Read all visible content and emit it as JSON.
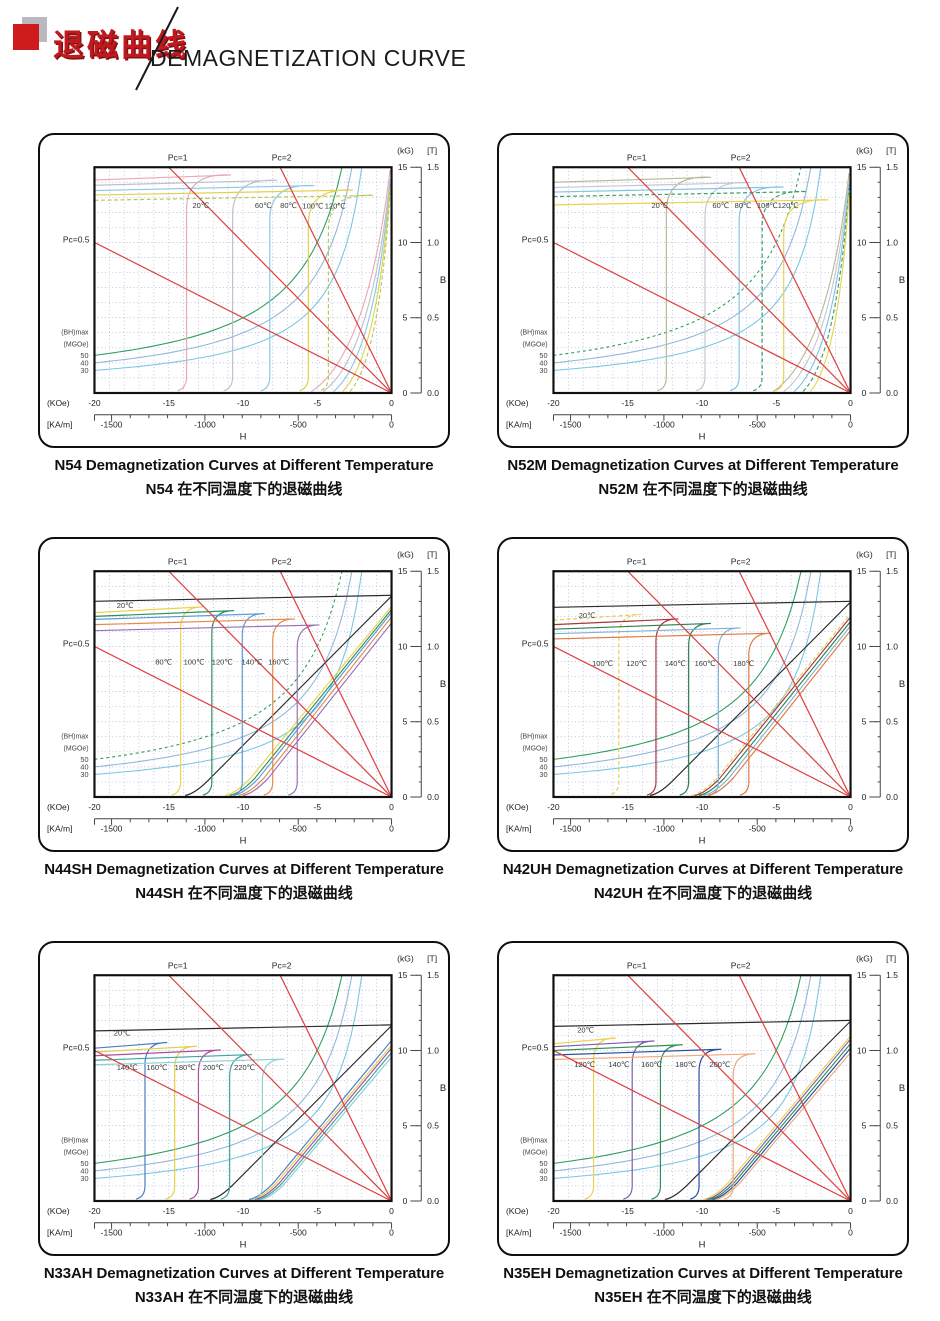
{
  "header": {
    "title_cn": "退磁曲线",
    "title_en": "DEMAGNETIZATION CURVE",
    "accent_color": "#cf1b1b"
  },
  "axes_common": {
    "xlim": [
      -20,
      0
    ],
    "ylim": [
      0,
      15
    ],
    "x_title": "H",
    "y_title": "B",
    "x_primary": {
      "unit": "(KOe)",
      "ticks": [
        -20,
        -15,
        -10,
        -5,
        0
      ]
    },
    "x_secondary": {
      "unit": "[KA/m]",
      "ticks": [
        -1500,
        -1000,
        -500,
        0
      ]
    },
    "y_primary": {
      "unit": "(kG)",
      "ticks": [
        15,
        10,
        5,
        0
      ]
    },
    "y_secondary": {
      "unit": "[T]",
      "ticks": [
        "1.5",
        "1.0",
        "0.5",
        "0.0"
      ]
    },
    "grid": "dotted",
    "pc_color": "#dd4343",
    "pc_lines": [
      {
        "label": "Pc=0.5",
        "slope": 0.5,
        "ly": 10.2
      },
      {
        "label": "Pc=1",
        "slope": 1,
        "lx": -14.4
      },
      {
        "label": "Pc=2",
        "slope": 2,
        "lx": -7.4
      }
    ],
    "bhmax_caption": [
      "(BH)max",
      "(MGOe)"
    ],
    "bh_contours": [
      {
        "label": "50",
        "k": 50,
        "color": "#2f9e5f"
      },
      {
        "label": "40",
        "k": 40,
        "color": "#93b7da"
      },
      {
        "label": "30",
        "k": 30,
        "color": "#79c7e3"
      }
    ]
  },
  "chart_data": [
    {
      "type": "line",
      "grade": "N54",
      "style": "round",
      "contour50_dashed": false,
      "caption_en": "N54 Demagnetization Curves at Different Temperature",
      "caption_cn": "N54 在不同温度下的退磁曲线",
      "xlabel": "H",
      "ylabel": "B",
      "series": [
        {
          "label": "20℃",
          "color": "#eaaab4",
          "Bi": 14.6,
          "Hk": -13.8,
          "Br": 14.8,
          "Hn": -5.4,
          "lx": -13.4,
          "ly": 12.3
        },
        {
          "label": "60℃",
          "color": "#bfbfcd",
          "Bi": 14.25,
          "Hk": -10.7,
          "Br": 14.2,
          "Hn": -4.6,
          "lx": -9.2,
          "ly": 12.3
        },
        {
          "label": "80℃",
          "color": "#85c9e8",
          "Bi": 13.9,
          "Hk": -8.2,
          "Br": 13.9,
          "Hn": -3.9,
          "lx": -7.5,
          "ly": 12.3
        },
        {
          "label": "100℃",
          "color": "#e4cf4b",
          "Bi": 13.6,
          "Hk": -5.6,
          "Br": 13.6,
          "Hn": -3.3,
          "lx": -6.0,
          "ly": 12.25
        },
        {
          "label": "120℃",
          "color": "#b4c953",
          "dash": 1,
          "Bi": 13.25,
          "Hk": -4.25,
          "Br": 13.3,
          "Hn": -2.8,
          "lx": -4.5,
          "ly": 12.25
        }
      ]
    },
    {
      "type": "line",
      "grade": "N52M",
      "style": "round",
      "contour50_dashed": true,
      "caption_en": "N52M Demagnetization Curves at Different Temperature",
      "caption_cn": "N52M 在不同温度下的退磁曲线",
      "xlabel": "H",
      "ylabel": "B",
      "series": [
        {
          "label": "20℃",
          "color": "#b9b896",
          "Bi": 14.45,
          "Hk": -12.4,
          "Br": 14.6,
          "Hn": -5.2,
          "lx": -13.4,
          "ly": 12.3
        },
        {
          "label": "60℃",
          "color": "#c6c6d2",
          "Bi": 14.1,
          "Hk": -9.8,
          "Br": 14.2,
          "Hn": -4.5,
          "lx": -9.3,
          "ly": 12.3
        },
        {
          "label": "80℃",
          "color": "#7fc4e6",
          "Bi": 13.8,
          "Hk": -7.5,
          "Br": 13.9,
          "Hn": -3.8,
          "lx": -7.8,
          "ly": 12.3
        },
        {
          "label": "100℃",
          "color": "#3f9d63",
          "dash": 1,
          "Bi": 13.5,
          "Hk": -5.95,
          "Br": 13.6,
          "Hn": -3.2,
          "lx": -6.3,
          "ly": 12.3
        },
        {
          "label": "120℃",
          "color": "#e8d44d",
          "Bi": 12.95,
          "Hk": -4.5,
          "Br": 13.2,
          "Hn": -2.7,
          "lx": -4.9,
          "ly": 12.3
        }
      ]
    },
    {
      "type": "line",
      "grade": "N44SH",
      "style": "square",
      "contour50_dashed": true,
      "caption_en": "N44SH Demagnetization Curves at Different Temperature",
      "caption_cn": "N44SH 在不同温度下的退磁曲线",
      "xlabel": "H",
      "ylabel": "B",
      "series": [
        {
          "label": "20℃",
          "color": "#2b2b2b",
          "Bi": 13.35,
          "Hk": null,
          "Br": 13.3,
          "Hcb": -13.2,
          "lx": -18.5,
          "ly": 12.55
        },
        {
          "label": "80℃",
          "color": "#ecd24c",
          "Bi": 12.65,
          "Hk": -14.2,
          "Br": 12.6,
          "Hcb": -10.5,
          "lx": -15.9,
          "ly": 8.8
        },
        {
          "label": "100℃",
          "color": "#2f8f5b",
          "Bi": 12.4,
          "Hk": -12.1,
          "Br": 12.4,
          "Hcb": -10.2,
          "lx": -14.0,
          "ly": 8.8
        },
        {
          "label": "120℃",
          "color": "#5b9bd5",
          "Bi": 12.2,
          "Hk": -10.05,
          "Br": 12.2,
          "Hcb": -9.95,
          "lx": -12.1,
          "ly": 8.8
        },
        {
          "label": "140℃",
          "color": "#e38b4a",
          "Bi": 11.85,
          "Hk": -8.0,
          "Br": 11.9,
          "Hcb": -9.6,
          "lx": -10.1,
          "ly": 8.8
        },
        {
          "label": "160℃",
          "color": "#9a6fb5",
          "Bi": 11.45,
          "Hk": -6.35,
          "Br": 11.5,
          "Hcb": -9.3,
          "lx": -8.3,
          "ly": 8.8
        }
      ]
    },
    {
      "type": "line",
      "grade": "N42UH",
      "style": "square",
      "contour50_dashed": false,
      "caption_en": "N42UH Demagnetization Curves at Different Temperature",
      "caption_cn": "N42UH 在不同温度下的退磁曲线",
      "xlabel": "H",
      "ylabel": "B",
      "series": [
        {
          "label": "20℃",
          "color": "#2b2b2b",
          "Bi": 12.95,
          "Hk": null,
          "Br": 12.9,
          "Hcb": -12.8,
          "lx": -18.3,
          "ly": 11.9
        },
        {
          "label": "100℃",
          "color": "#e4cf4b",
          "dash": 1,
          "Bi": 12.15,
          "Hk": -15.6,
          "Br": 12.1,
          "Hcb": -10.0,
          "lx": -17.4,
          "ly": 8.7
        },
        {
          "label": "120℃",
          "color": "#a8353f",
          "Bi": 11.85,
          "Hk": -13.1,
          "Br": 11.9,
          "Hcb": -9.8,
          "lx": -15.1,
          "ly": 8.7
        },
        {
          "label": "140℃",
          "color": "#2f7d4f",
          "Bi": 11.55,
          "Hk": -10.9,
          "Br": 11.6,
          "Hcb": -9.5,
          "lx": -12.5,
          "ly": 8.7
        },
        {
          "label": "160℃",
          "color": "#7fb3d5",
          "Bi": 11.25,
          "Hk": -8.9,
          "Br": 11.3,
          "Hcb": -9.2,
          "lx": -10.5,
          "ly": 8.7
        },
        {
          "label": "180℃",
          "color": "#e07a3f",
          "Bi": 10.9,
          "Hk": -6.85,
          "Br": 11.0,
          "Hcb": -8.9,
          "lx": -7.9,
          "ly": 8.7
        }
      ]
    },
    {
      "type": "line",
      "grade": "N33AH",
      "style": "square",
      "contour50_dashed": false,
      "caption_en": "N33AH Demagnetization Curves at Different Temperature",
      "caption_cn": "N33AH 在不同温度下的退磁曲线",
      "xlabel": "H",
      "ylabel": "B",
      "series": [
        {
          "label": "20℃",
          "color": "#2b2b2b",
          "Bi": 11.65,
          "Hk": null,
          "Br": 11.6,
          "Hcb": -11.5,
          "lx": -18.7,
          "ly": 11.0
        },
        {
          "label": "140℃",
          "color": "#4a7cc7",
          "Bi": 10.55,
          "Hk": -16.6,
          "Br": 10.6,
          "Hcb": -8.9,
          "lx": -18.5,
          "ly": 8.7
        },
        {
          "label": "160℃",
          "color": "#e4cf4b",
          "Bi": 10.3,
          "Hk": -14.6,
          "Br": 10.3,
          "Hcb": -8.7,
          "lx": -16.5,
          "ly": 8.7
        },
        {
          "label": "180℃",
          "color": "#a8509e",
          "Bi": 10.05,
          "Hk": -13.0,
          "Br": 10.1,
          "Hcb": -8.5,
          "lx": -14.6,
          "ly": 8.7
        },
        {
          "label": "200℃",
          "color": "#3fa3a0",
          "Bi": 9.75,
          "Hk": -10.9,
          "Br": 9.8,
          "Hcb": -8.3,
          "lx": -12.7,
          "ly": 8.7
        },
        {
          "label": "220℃",
          "color": "#8fd0cf",
          "Bi": 9.45,
          "Hk": -8.7,
          "Br": 9.5,
          "Hcb": -8.1,
          "lx": -10.6,
          "ly": 8.7
        }
      ]
    },
    {
      "type": "line",
      "grade": "N35EH",
      "style": "square",
      "contour50_dashed": false,
      "caption_en": "N35EH Demagnetization Curves at Different Temperature",
      "caption_cn": "N35EH 在不同温度下的退磁曲线",
      "xlabel": "H",
      "ylabel": "B",
      "series": [
        {
          "label": "20℃",
          "color": "#2b2b2b",
          "Bi": 11.95,
          "Hk": null,
          "Br": 11.9,
          "Hcb": -11.8,
          "lx": -18.4,
          "ly": 11.2
        },
        {
          "label": "120℃",
          "color": "#ecd24c",
          "Bi": 10.85,
          "Hk": -17.3,
          "Br": 10.9,
          "Hcb": -9.2,
          "lx": -18.6,
          "ly": 8.9
        },
        {
          "label": "140℃",
          "color": "#7b5ea7",
          "Bi": 10.65,
          "Hk": -14.7,
          "Br": 10.7,
          "Hcb": -9.0,
          "lx": -16.3,
          "ly": 8.9
        },
        {
          "label": "160℃",
          "color": "#2f8f5b",
          "Bi": 10.4,
          "Hk": -12.8,
          "Br": 10.4,
          "Hcb": -8.8,
          "lx": -14.1,
          "ly": 8.9
        },
        {
          "label": "180℃",
          "color": "#2b4b9b",
          "Bi": 10.1,
          "Hk": -10.2,
          "Br": 10.1,
          "Hcb": -8.6,
          "lx": -11.8,
          "ly": 8.9
        },
        {
          "label": "200℃",
          "color": "#f0a878",
          "Bi": 9.8,
          "Hk": -7.9,
          "Br": 9.8,
          "Hcb": -8.4,
          "lx": -9.5,
          "ly": 8.9
        }
      ]
    }
  ]
}
